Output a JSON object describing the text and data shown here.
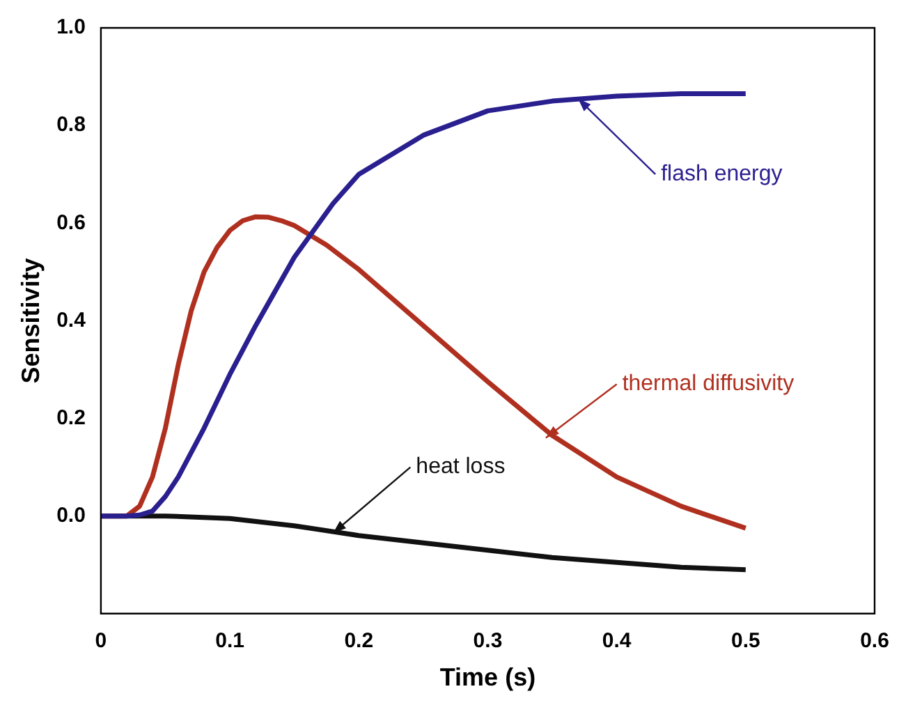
{
  "chart_data": {
    "type": "line",
    "xlabel": "Time (s)",
    "ylabel": "Sensitivity",
    "xlim": [
      0,
      0.6
    ],
    "xticks": [
      {
        "value": 0,
        "label": "0"
      },
      0.1,
      0.2,
      0.3,
      0.4,
      0.5,
      0.6
    ],
    "ylim": [
      -0.2,
      1.0
    ],
    "yticks": [
      {
        "value": 0,
        "label": "0.0"
      },
      0.2,
      0.4,
      0.6,
      0.8,
      {
        "value": 1,
        "label": "1.0"
      }
    ],
    "legend": false,
    "marker": "none",
    "line_style": "solid",
    "series": [
      {
        "name": "flash energy",
        "color": "#2a1f8f",
        "x": [
          0,
          0.02,
          0.03,
          0.04,
          0.05,
          0.06,
          0.07,
          0.08,
          0.09,
          0.1,
          0.12,
          0.15,
          0.18,
          0.2,
          0.25,
          0.3,
          0.35,
          0.4,
          0.45,
          0.5
        ],
        "values": [
          0,
          0,
          0.002,
          0.01,
          0.04,
          0.08,
          0.13,
          0.18,
          0.235,
          0.29,
          0.39,
          0.53,
          0.64,
          0.7,
          0.78,
          0.83,
          0.85,
          0.86,
          0.865,
          0.865
        ]
      },
      {
        "name": "thermal diffusivity",
        "color": "#b03020",
        "x": [
          0,
          0.02,
          0.03,
          0.04,
          0.05,
          0.06,
          0.07,
          0.08,
          0.09,
          0.1,
          0.11,
          0.12,
          0.13,
          0.14,
          0.15,
          0.175,
          0.2,
          0.25,
          0.3,
          0.35,
          0.4,
          0.45,
          0.5
        ],
        "values": [
          0,
          0,
          0.02,
          0.08,
          0.18,
          0.31,
          0.42,
          0.5,
          0.55,
          0.585,
          0.605,
          0.613,
          0.612,
          0.605,
          0.595,
          0.555,
          0.505,
          0.39,
          0.275,
          0.165,
          0.08,
          0.02,
          -0.025
        ]
      },
      {
        "name": "heat loss",
        "color": "#111111",
        "x": [
          0,
          0.05,
          0.1,
          0.15,
          0.2,
          0.25,
          0.3,
          0.35,
          0.4,
          0.45,
          0.5
        ],
        "values": [
          0,
          0,
          -0.005,
          -0.02,
          -0.04,
          -0.055,
          -0.07,
          -0.085,
          -0.095,
          -0.105,
          -0.11
        ]
      }
    ]
  }
}
